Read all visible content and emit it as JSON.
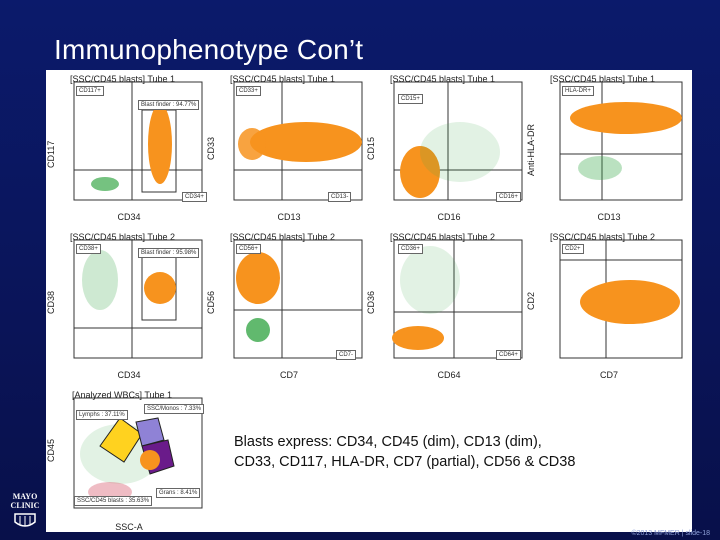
{
  "slide": {
    "title": "Immunophenotype Con’t",
    "caption_line1": "Blasts express: CD34, CD45 (dim), CD13 (dim),",
    "caption_line2": "CD33, CD117, HLA-DR, CD7 (partial), CD56 & CD38",
    "logo_line1": "MAYO",
    "logo_line2": "CLINIC",
    "footer": "©2013 MFMER | slide-18"
  },
  "colors": {
    "background": "#0b1a6b",
    "blasts": "#f7931e",
    "other_events": "#3aa84a",
    "lymphs": "#ffd21f",
    "monos": "#8f82d6",
    "grans": "#6a1b8a",
    "gate_line": "#333333"
  },
  "plots": [
    {
      "header": "[SSC/CD45 blasts] Tube 1",
      "xlabel": "CD34",
      "ylabel": "CD117",
      "gates": [
        "CD117+",
        "Blast finder : 94.77%",
        "CD34+"
      ],
      "pattern": "vertical-high",
      "icons": "scatter-plot-icon"
    },
    {
      "header": "[SSC/CD45 blasts] Tube 1",
      "xlabel": "CD13",
      "ylabel": "CD33",
      "gates": [
        "CD33+",
        "CD13-"
      ],
      "pattern": "horizontal-high"
    },
    {
      "header": "[SSC/CD45 blasts] Tube 1",
      "xlabel": "CD16",
      "ylabel": "CD15",
      "gates": [
        "CD15+",
        "CD16+"
      ],
      "pattern": "low-left"
    },
    {
      "header": "[SSC/CD45 blasts] Tube 1",
      "xlabel": "CD13",
      "ylabel": "Anti-HLA-DR",
      "gates": [
        "HLA-DR+"
      ],
      "pattern": "horizontal-top"
    },
    {
      "header": "[SSC/CD45 blasts] Tube 2",
      "xlabel": "CD34",
      "ylabel": "CD38",
      "gates": [
        "CD38+",
        "Blast finder : 95.98%"
      ],
      "pattern": "upper-mid"
    },
    {
      "header": "[SSC/CD45 blasts] Tube 2",
      "xlabel": "CD7",
      "ylabel": "CD56",
      "gates": [
        "CD56+",
        "CD7-"
      ],
      "pattern": "upper-split"
    },
    {
      "header": "[SSC/CD45 blasts] Tube 2",
      "xlabel": "CD64",
      "ylabel": "CD36",
      "gates": [
        "CD36+",
        "CD64+"
      ],
      "pattern": "bottom-left"
    },
    {
      "header": "[SSC/CD45 blasts] Tube 2",
      "xlabel": "CD7",
      "ylabel": "CD2",
      "gates": [
        "CD2+"
      ],
      "pattern": "mid-right"
    },
    {
      "header": "[Analyzed WBCs] Tube 1",
      "xlabel": "SSC-A",
      "ylabel": "CD45",
      "gates": [
        "Lymphs : 37.11%",
        "SSC/Monos : 7.33%",
        "SSC/CD45 blasts : 35.63%",
        "Grans : 8.41%"
      ],
      "pattern": "ssc-cd45"
    }
  ],
  "axis_ticks": [
    "10³",
    "10²",
    "10¹",
    "0"
  ],
  "x_ticks": [
    "0",
    "10¹",
    "10²",
    "10³"
  ]
}
